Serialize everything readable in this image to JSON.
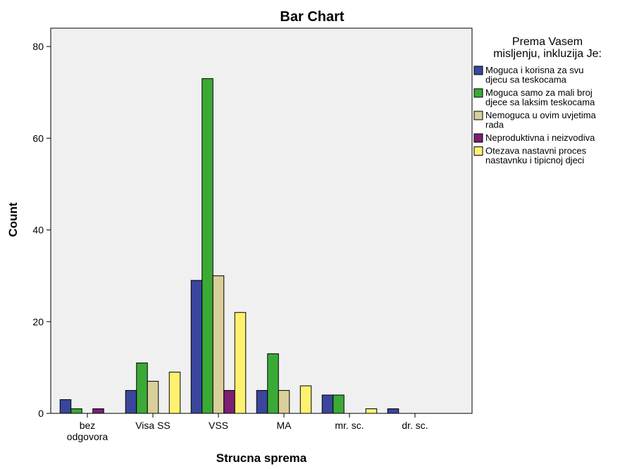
{
  "chart_data": {
    "type": "bar",
    "title": "Bar Chart",
    "xlabel": "Strucna sprema",
    "ylabel": "Count",
    "ylim": [
      0,
      84
    ],
    "yticks": [
      0,
      20,
      40,
      60,
      80
    ],
    "grid": false,
    "legend_placement": "right",
    "legend_title": [
      "Prema Vasem",
      "misljenju, inkluzija Je:"
    ],
    "categories": [
      [
        "bez",
        "odgovora"
      ],
      [
        "Visa SS"
      ],
      [
        "VSS"
      ],
      [
        "MA"
      ],
      [
        "mr. sc."
      ],
      [
        "dr. sc."
      ]
    ],
    "series": [
      {
        "name": [
          "Moguca i korisna za svu",
          "djecu sa teskocama"
        ],
        "color": "#3A469B",
        "values": [
          3,
          5,
          29,
          5,
          4,
          1
        ]
      },
      {
        "name": [
          "Moguca samo za mali broj",
          "djece sa laksim teskocama"
        ],
        "color": "#3AAA35",
        "values": [
          1,
          11,
          73,
          13,
          4,
          0
        ]
      },
      {
        "name": [
          "Nemoguca u ovim uvjetima",
          "rada"
        ],
        "color": "#D9CF9A",
        "values": [
          0,
          7,
          30,
          5,
          0,
          0
        ]
      },
      {
        "name": [
          "Neproduktivna i neizvodiva"
        ],
        "color": "#7B1F73",
        "values": [
          1,
          0,
          5,
          0,
          0,
          0
        ]
      },
      {
        "name": [
          "Otezava nastavni proces",
          "nastavnku i tipicnoj djeci"
        ],
        "color": "#FFF170",
        "values": [
          0,
          9,
          22,
          6,
          1,
          0
        ]
      }
    ],
    "colors": {
      "plot_background": "#F0F0F0",
      "bar_outline": "#000000"
    }
  }
}
